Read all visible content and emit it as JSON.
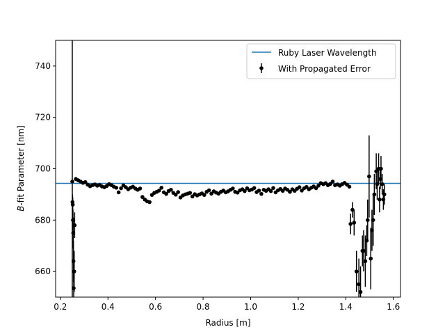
{
  "chart_data": {
    "type": "scatter",
    "xlabel": "Radius [m]",
    "ylabel_italic": "B",
    "ylabel_rest": "-fit Parameter [nm]",
    "xlim": [
      0.18,
      1.63
    ],
    "ylim": [
      650,
      750
    ],
    "xticks": [
      0.2,
      0.4,
      0.6,
      0.8,
      1.0,
      1.2,
      1.4,
      1.6
    ],
    "xtick_labels": [
      "0.2",
      "0.4",
      "0.6",
      "0.8",
      "1.0",
      "1.2",
      "1.4",
      "1.6"
    ],
    "yticks": [
      660,
      680,
      700,
      720,
      740
    ],
    "ytick_labels": [
      "660",
      "680",
      "700",
      "720",
      "740"
    ],
    "grid": false,
    "legend_position": "top-right",
    "reference_line": {
      "name": "Ruby Laser Wavelength",
      "y": 694.3,
      "color": "#1f77b4"
    },
    "series": [
      {
        "name": "With Propagated Error",
        "color": "#000000",
        "points": [
          [
            0.25,
            695.0,
            60.0
          ],
          [
            0.251,
            687.0,
            3.0
          ],
          [
            0.252,
            686.0,
            3.0
          ],
          [
            0.253,
            680.0,
            4.0
          ],
          [
            0.254,
            675.0,
            6.0
          ],
          [
            0.255,
            664.0,
            8.0
          ],
          [
            0.256,
            653.5,
            10.0
          ],
          [
            0.258,
            660.0,
            8.0
          ],
          [
            0.26,
            678.0,
            5.0
          ],
          [
            0.265,
            696.0,
            0.8
          ],
          [
            0.275,
            695.5,
            0.7
          ],
          [
            0.285,
            695.0,
            0.6
          ],
          [
            0.295,
            694.5,
            0.6
          ],
          [
            0.305,
            694.8,
            0.6
          ],
          [
            0.315,
            693.8,
            0.6
          ],
          [
            0.325,
            693.2,
            0.6
          ],
          [
            0.335,
            693.6,
            0.6
          ],
          [
            0.345,
            693.9,
            0.6
          ],
          [
            0.355,
            693.4,
            0.6
          ],
          [
            0.365,
            693.7,
            0.6
          ],
          [
            0.375,
            693.1,
            0.6
          ],
          [
            0.385,
            692.8,
            0.6
          ],
          [
            0.395,
            693.3,
            0.6
          ],
          [
            0.405,
            694.0,
            0.6
          ],
          [
            0.415,
            693.6,
            0.6
          ],
          [
            0.425,
            693.0,
            0.6
          ],
          [
            0.435,
            692.6,
            0.6
          ],
          [
            0.445,
            690.8,
            0.6
          ],
          [
            0.455,
            692.4,
            0.6
          ],
          [
            0.465,
            693.5,
            0.6
          ],
          [
            0.475,
            692.8,
            0.6
          ],
          [
            0.485,
            692.0,
            0.6
          ],
          [
            0.495,
            692.6,
            0.6
          ],
          [
            0.505,
            693.0,
            0.6
          ],
          [
            0.515,
            692.3,
            0.6
          ],
          [
            0.525,
            691.8,
            0.6
          ],
          [
            0.535,
            692.3,
            0.6
          ],
          [
            0.545,
            689.0,
            0.6
          ],
          [
            0.555,
            688.0,
            0.6
          ],
          [
            0.565,
            687.3,
            0.6
          ],
          [
            0.575,
            687.0,
            0.6
          ],
          [
            0.585,
            689.8,
            0.6
          ],
          [
            0.595,
            690.6,
            0.6
          ],
          [
            0.605,
            691.0,
            0.6
          ],
          [
            0.615,
            691.5,
            0.6
          ],
          [
            0.625,
            692.6,
            0.6
          ],
          [
            0.635,
            690.8,
            0.6
          ],
          [
            0.645,
            690.2,
            0.6
          ],
          [
            0.655,
            691.3,
            0.6
          ],
          [
            0.665,
            691.8,
            0.6
          ],
          [
            0.675,
            690.6,
            0.6
          ],
          [
            0.685,
            689.9,
            0.6
          ],
          [
            0.695,
            690.9,
            0.6
          ],
          [
            0.705,
            688.8,
            0.6
          ],
          [
            0.715,
            689.6,
            0.6
          ],
          [
            0.725,
            690.0,
            0.6
          ],
          [
            0.735,
            690.3,
            0.6
          ],
          [
            0.745,
            690.6,
            0.6
          ],
          [
            0.755,
            689.2,
            0.6
          ],
          [
            0.765,
            690.1,
            0.6
          ],
          [
            0.775,
            689.6,
            0.6
          ],
          [
            0.785,
            690.0,
            0.6
          ],
          [
            0.795,
            690.4,
            0.6
          ],
          [
            0.805,
            689.8,
            0.6
          ],
          [
            0.815,
            691.0,
            0.6
          ],
          [
            0.825,
            691.6,
            0.6
          ],
          [
            0.835,
            690.3,
            0.6
          ],
          [
            0.845,
            691.2,
            0.6
          ],
          [
            0.855,
            690.7,
            0.6
          ],
          [
            0.865,
            690.3,
            0.6
          ],
          [
            0.875,
            691.0,
            0.6
          ],
          [
            0.885,
            691.5,
            0.6
          ],
          [
            0.895,
            690.8,
            0.6
          ],
          [
            0.905,
            691.2,
            0.6
          ],
          [
            0.915,
            691.8,
            0.6
          ],
          [
            0.925,
            692.3,
            0.6
          ],
          [
            0.935,
            691.0,
            0.6
          ],
          [
            0.945,
            690.7,
            0.6
          ],
          [
            0.955,
            691.6,
            0.6
          ],
          [
            0.965,
            692.0,
            0.6
          ],
          [
            0.975,
            691.3,
            0.6
          ],
          [
            0.985,
            692.4,
            0.6
          ],
          [
            0.995,
            691.6,
            0.6
          ],
          [
            1.005,
            691.9,
            0.6
          ],
          [
            1.015,
            692.5,
            0.6
          ],
          [
            1.025,
            690.9,
            0.6
          ],
          [
            1.035,
            691.5,
            0.6
          ],
          [
            1.045,
            690.2,
            0.6
          ],
          [
            1.055,
            691.8,
            0.6
          ],
          [
            1.065,
            691.4,
            0.6
          ],
          [
            1.075,
            692.0,
            0.6
          ],
          [
            1.085,
            691.3,
            0.6
          ],
          [
            1.095,
            692.5,
            0.6
          ],
          [
            1.105,
            690.8,
            0.6
          ],
          [
            1.115,
            691.6,
            0.6
          ],
          [
            1.125,
            692.1,
            0.6
          ],
          [
            1.135,
            691.4,
            0.6
          ],
          [
            1.145,
            692.3,
            0.6
          ],
          [
            1.155,
            691.8,
            0.6
          ],
          [
            1.165,
            691.0,
            0.6
          ],
          [
            1.175,
            692.0,
            0.6
          ],
          [
            1.185,
            691.4,
            0.6
          ],
          [
            1.195,
            692.2,
            0.6
          ],
          [
            1.205,
            692.8,
            0.6
          ],
          [
            1.215,
            691.5,
            0.6
          ],
          [
            1.225,
            692.4,
            0.6
          ],
          [
            1.235,
            692.9,
            0.6
          ],
          [
            1.245,
            692.0,
            0.6
          ],
          [
            1.255,
            692.6,
            0.6
          ],
          [
            1.265,
            693.1,
            0.6
          ],
          [
            1.275,
            692.4,
            0.6
          ],
          [
            1.285,
            693.4,
            0.6
          ],
          [
            1.295,
            694.4,
            0.6
          ],
          [
            1.305,
            694.0,
            0.6
          ],
          [
            1.315,
            694.4,
            0.6
          ],
          [
            1.325,
            693.6,
            0.6
          ],
          [
            1.335,
            694.1,
            0.6
          ],
          [
            1.345,
            695.0,
            0.6
          ],
          [
            1.355,
            693.6,
            0.6
          ],
          [
            1.365,
            693.9,
            0.6
          ],
          [
            1.375,
            693.4,
            0.6
          ],
          [
            1.385,
            694.0,
            0.6
          ],
          [
            1.395,
            694.5,
            0.6
          ],
          [
            1.405,
            693.8,
            0.6
          ],
          [
            1.415,
            693.0,
            0.6
          ],
          [
            1.42,
            678.5,
            4.0
          ],
          [
            1.428,
            684.0,
            3.0
          ],
          [
            1.435,
            679.0,
            5.0
          ],
          [
            1.445,
            660.0,
            8.0
          ],
          [
            1.455,
            655.0,
            10.0
          ],
          [
            1.462,
            652.0,
            10.0
          ],
          [
            1.47,
            668.0,
            6.0
          ],
          [
            1.475,
            668.0,
            8.0
          ],
          [
            1.482,
            664.0,
            10.0
          ],
          [
            1.488,
            672.0,
            6.0
          ],
          [
            1.492,
            680.0,
            8.0
          ],
          [
            1.498,
            697.0,
            16.0
          ],
          [
            1.505,
            665.0,
            12.0
          ],
          [
            1.51,
            676.0,
            8.0
          ],
          [
            1.515,
            680.0,
            10.0
          ],
          [
            1.52,
            690.0,
            8.0
          ],
          [
            1.528,
            699.0,
            7.0
          ],
          [
            1.532,
            694.0,
            6.0
          ],
          [
            1.538,
            700.0,
            6.0
          ],
          [
            1.542,
            688.0,
            5.0
          ],
          [
            1.545,
            696.0,
            4.0
          ],
          [
            1.548,
            700.0,
            5.0
          ],
          [
            1.553,
            694.0,
            4.0
          ],
          [
            1.558,
            688.0,
            4.0
          ],
          [
            1.562,
            690.0,
            4.0
          ]
        ]
      }
    ]
  }
}
